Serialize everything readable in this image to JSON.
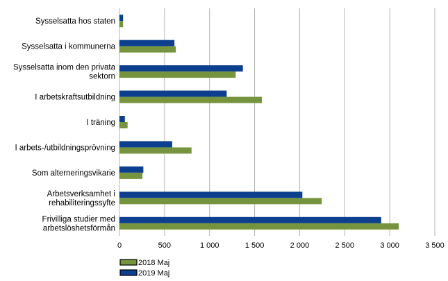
{
  "chart_data": {
    "type": "bar",
    "orientation": "horizontal",
    "categories": [
      [
        "Sysselsatta hos staten"
      ],
      [
        "Sysselsatta i kommunerna"
      ],
      [
        "Sysselsatta inom den privata",
        "sektorn"
      ],
      [
        "I arbetskraftsutbildning"
      ],
      [
        "I träning"
      ],
      [
        "I arbets-/utbildningsprövning"
      ],
      [
        "Som alterneringsvikarie"
      ],
      [
        "Arbetsverksamhet i",
        "rehabiliteringssyfte"
      ],
      [
        "Frivilliga studier med",
        "arbetslöshetsförmån"
      ]
    ],
    "series": [
      {
        "name": "2019 Maj",
        "color": "#0c3f8e",
        "values": [
          40,
          610,
          1370,
          1190,
          60,
          585,
          265,
          2030,
          2905
        ]
      },
      {
        "name": "2018 Maj",
        "color": "#76943e",
        "values": [
          40,
          625,
          1290,
          1580,
          90,
          800,
          255,
          2245,
          3100
        ]
      }
    ],
    "legend_order": [
      "2018 Maj",
      "2019 Maj"
    ],
    "xlim": [
      0,
      3500
    ],
    "xticks": [
      "0",
      "500",
      "1 000",
      "1 500",
      "2 000",
      "2 500",
      "3 000",
      "3 500"
    ],
    "xtick_values": [
      0,
      500,
      1000,
      1500,
      2000,
      2500,
      3000,
      3500
    ],
    "grid": "vertical",
    "legend_position": "bottom-left"
  }
}
